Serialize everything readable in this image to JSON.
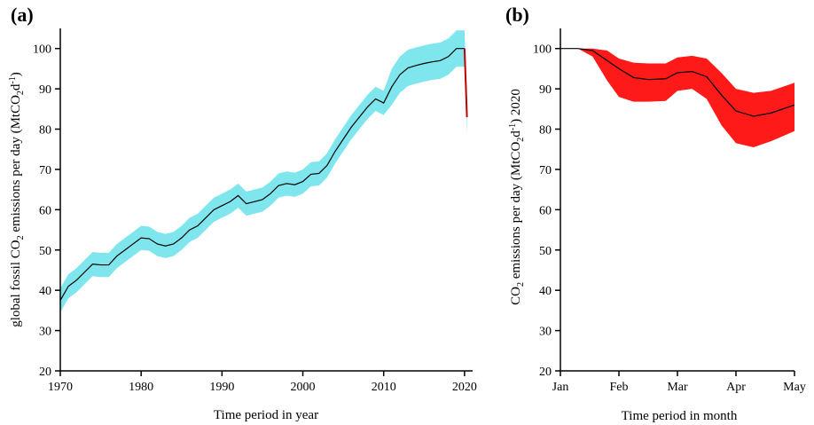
{
  "panels": [
    {
      "panel_label": "(a)",
      "chart_data": {
        "type": "line",
        "xlabel": "Time period in year",
        "ylabel_pre": "global fossil CO",
        "ylabel_sub": "2",
        "ylabel_mid": " emissions per day (MtCO",
        "ylabel_sub2": "2",
        "ylabel_mid2": "d",
        "ylabel_sup": "-1",
        "ylabel_end": ")",
        "xlim": [
          1970,
          2021
        ],
        "ylim": [
          20,
          105
        ],
        "xticks": [
          1970,
          1980,
          1990,
          2000,
          2010,
          2020
        ],
        "yticks": [
          20,
          30,
          40,
          50,
          60,
          70,
          80,
          90,
          100
        ],
        "band_color": "#7fe6ee",
        "line_color": "#000000",
        "end_color": "#c00000",
        "x": [
          1970,
          1971,
          1972,
          1973,
          1974,
          1975,
          1976,
          1977,
          1978,
          1979,
          1980,
          1981,
          1982,
          1983,
          1984,
          1985,
          1986,
          1987,
          1988,
          1989,
          1990,
          1991,
          1992,
          1993,
          1994,
          1995,
          1996,
          1997,
          1998,
          1999,
          2000,
          2001,
          2002,
          2003,
          2004,
          2005,
          2006,
          2007,
          2008,
          2009,
          2010,
          2011,
          2012,
          2013,
          2014,
          2015,
          2016,
          2017,
          2018,
          2019,
          2020,
          2020.3
        ],
        "y": [
          37.5,
          41,
          42.5,
          44.5,
          46.5,
          46.3,
          46.3,
          48.5,
          50,
          51.5,
          53,
          52.8,
          51.5,
          51,
          51.5,
          53,
          55,
          56,
          58,
          60,
          61,
          62,
          63.5,
          61.5,
          62,
          62.5,
          64,
          66,
          66.5,
          66.2,
          67,
          68.8,
          69,
          71,
          74.5,
          77.5,
          80.5,
          83,
          85.5,
          87.5,
          86.5,
          90.5,
          93.5,
          95.2,
          95.8,
          96.3,
          96.7,
          97,
          98,
          100,
          100,
          83
        ],
        "band": 3
      }
    },
    {
      "panel_label": "(b)",
      "chart_data": {
        "type": "area",
        "xlabel": "Time period in month",
        "ylabel_pre": "CO",
        "ylabel_sub": "2",
        "ylabel_mid": " emissions per day (MtCO",
        "ylabel_sub2": "2",
        "ylabel_mid2": "d",
        "ylabel_sup": "-1",
        "ylabel_end": ") 2020",
        "categories": [
          "Jan",
          "Feb",
          "Mar",
          "Apr",
          "May"
        ],
        "xlim": [
          0,
          4
        ],
        "ylim": [
          20,
          105
        ],
        "yticks": [
          20,
          30,
          40,
          50,
          60,
          70,
          80,
          90,
          100
        ],
        "band_color": "#ff1a1a",
        "line_color": "#000000",
        "x": [
          0,
          0.3,
          0.55,
          0.8,
          1.0,
          1.25,
          1.5,
          1.8,
          2.0,
          2.25,
          2.5,
          2.75,
          3.0,
          3.3,
          3.6,
          4.0
        ],
        "y": [
          100,
          100,
          99.5,
          97,
          95,
          92.8,
          92.3,
          92.5,
          94,
          94.3,
          93,
          88.5,
          84.5,
          83.2,
          84,
          86
        ],
        "lower": [
          100,
          100,
          98,
          92,
          88,
          86.8,
          86.8,
          87,
          89.5,
          90,
          87.5,
          81,
          76.5,
          75.5,
          77,
          79.5
        ],
        "upper": [
          100,
          100,
          100,
          99.5,
          97.5,
          96.5,
          96.3,
          96.3,
          97.8,
          98.2,
          97.5,
          94,
          90,
          89,
          89.5,
          91.5
        ]
      }
    }
  ]
}
